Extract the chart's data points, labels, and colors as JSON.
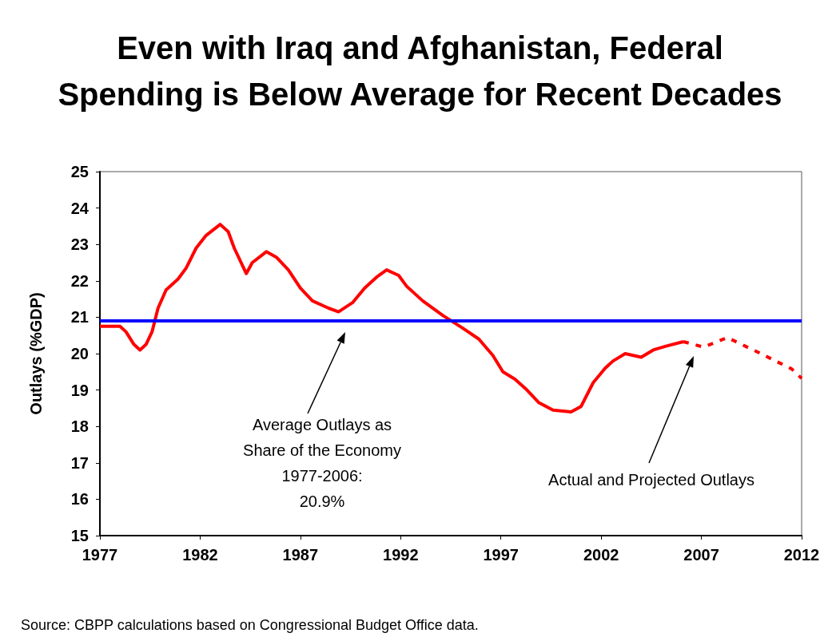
{
  "chart_data": {
    "type": "line",
    "title": "Even with Iraq and Afghanistan, Federal\nSpending is Below Average for Recent Decades",
    "ylabel": "Outlays (%GDP)",
    "xlim": [
      1977,
      2012
    ],
    "xticks": [
      1977,
      1982,
      1987,
      1992,
      1997,
      2002,
      2007,
      2012
    ],
    "ylim": [
      15,
      25
    ],
    "yticks": [
      15,
      16,
      17,
      18,
      19,
      20,
      21,
      22,
      23,
      24,
      25
    ],
    "grid": false,
    "marker": "none",
    "series": [
      {
        "color": "#ff0000",
        "line_style": "solid",
        "x": [
          1977,
          1978,
          1978.3,
          1978.7,
          1979,
          1979.3,
          1979.6,
          1979.9,
          1980.3,
          1980.9,
          1981.3,
          1981.8,
          1982.3,
          1983,
          1983.4,
          1983.7,
          1984.3,
          1984.6,
          1985.3,
          1985.8,
          1986.4,
          1987,
          1987.6,
          1988.4,
          1988.9,
          1989.6,
          1990.2,
          1990.8,
          1991.3,
          1991.9,
          1992.3,
          1993.1,
          1994.1,
          1995.1,
          1995.9,
          1996.6,
          1997.1,
          1997.7,
          1998.3,
          1998.9,
          1999.6,
          2000.5,
          2001,
          2001.6,
          2002.2,
          2002.6,
          2003.2,
          2004,
          2004.6,
          2005.2,
          2006.1
        ],
        "values": [
          20.75,
          20.75,
          20.6,
          20.25,
          20.1,
          20.25,
          20.6,
          21.25,
          21.75,
          22.05,
          22.35,
          22.9,
          23.25,
          23.55,
          23.35,
          22.9,
          22.2,
          22.5,
          22.8,
          22.65,
          22.3,
          21.8,
          21.45,
          21.25,
          21.15,
          21.4,
          21.8,
          22.1,
          22.3,
          22.15,
          21.85,
          21.45,
          21.05,
          20.7,
          20.4,
          19.95,
          19.5,
          19.3,
          19.0,
          18.65,
          18.45,
          18.4,
          18.55,
          19.2,
          19.6,
          19.8,
          20.0,
          19.9,
          20.1,
          20.2,
          20.33
        ]
      },
      {
        "color": "#ff0000",
        "line_style": "dashed",
        "x": [
          2006.1,
          2007.1,
          2008.3,
          2009.7,
          2010.7,
          2011.5,
          2012
        ],
        "values": [
          20.33,
          20.18,
          20.44,
          20.07,
          19.8,
          19.58,
          19.32
        ]
      }
    ],
    "ref_lines": [
      {
        "axis": "y",
        "value": 20.9,
        "color": "#0000ff"
      }
    ],
    "annotations": [
      "Average Outlays as\nShare of the Economy\n1977-2006:\n20.9%",
      "Actual and Projected Outlays",
      "Source: CBPP calculations based on Congressional Budget Office data."
    ]
  }
}
